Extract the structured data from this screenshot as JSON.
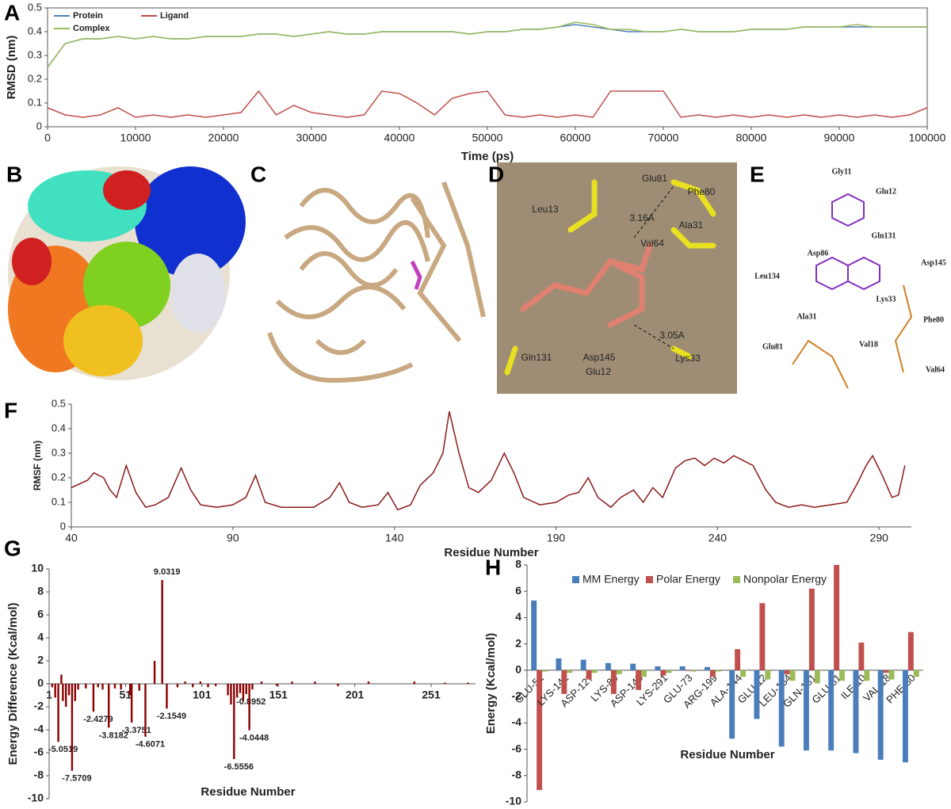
{
  "chart_data": [
    {
      "type": "line",
      "panel": "A",
      "x_label": "Time (ps)",
      "y_label": "RMSD (nm)",
      "x": [
        0,
        2000,
        4000,
        6000,
        8000,
        10000,
        12000,
        14000,
        16000,
        18000,
        20000,
        22000,
        24000,
        26000,
        28000,
        30000,
        32000,
        34000,
        36000,
        38000,
        40000,
        42000,
        44000,
        46000,
        48000,
        50000,
        52000,
        54000,
        56000,
        58000,
        60000,
        62000,
        64000,
        66000,
        68000,
        70000,
        72000,
        74000,
        76000,
        78000,
        80000,
        82000,
        84000,
        86000,
        88000,
        90000,
        92000,
        94000,
        96000,
        98000,
        100000
      ],
      "series": [
        {
          "name": "Protein",
          "color": "#4f81bd",
          "values": [
            0.25,
            0.35,
            0.37,
            0.37,
            0.38,
            0.37,
            0.38,
            0.37,
            0.37,
            0.38,
            0.38,
            0.38,
            0.39,
            0.39,
            0.38,
            0.39,
            0.4,
            0.39,
            0.39,
            0.4,
            0.4,
            0.4,
            0.4,
            0.4,
            0.39,
            0.4,
            0.4,
            0.41,
            0.41,
            0.42,
            0.43,
            0.42,
            0.41,
            0.4,
            0.4,
            0.4,
            0.41,
            0.4,
            0.4,
            0.4,
            0.41,
            0.41,
            0.41,
            0.42,
            0.42,
            0.42,
            0.42,
            0.42,
            0.42,
            0.42,
            0.42
          ]
        },
        {
          "name": "Ligand",
          "color": "#c0504d",
          "values": [
            0.08,
            0.05,
            0.04,
            0.05,
            0.08,
            0.04,
            0.05,
            0.04,
            0.05,
            0.04,
            0.05,
            0.06,
            0.15,
            0.05,
            0.09,
            0.06,
            0.05,
            0.04,
            0.05,
            0.15,
            0.14,
            0.1,
            0.05,
            0.12,
            0.14,
            0.15,
            0.05,
            0.04,
            0.05,
            0.04,
            0.05,
            0.04,
            0.15,
            0.15,
            0.15,
            0.15,
            0.04,
            0.05,
            0.04,
            0.05,
            0.04,
            0.05,
            0.04,
            0.05,
            0.04,
            0.05,
            0.04,
            0.05,
            0.04,
            0.05,
            0.08
          ]
        },
        {
          "name": "Complex",
          "color": "#9bbb59",
          "values": [
            0.25,
            0.35,
            0.37,
            0.37,
            0.38,
            0.37,
            0.38,
            0.37,
            0.37,
            0.38,
            0.38,
            0.38,
            0.39,
            0.39,
            0.38,
            0.39,
            0.4,
            0.39,
            0.39,
            0.4,
            0.4,
            0.4,
            0.4,
            0.4,
            0.39,
            0.4,
            0.4,
            0.41,
            0.41,
            0.42,
            0.44,
            0.43,
            0.41,
            0.41,
            0.4,
            0.4,
            0.41,
            0.4,
            0.4,
            0.4,
            0.41,
            0.41,
            0.41,
            0.42,
            0.42,
            0.42,
            0.43,
            0.42,
            0.42,
            0.42,
            0.42
          ]
        }
      ],
      "xlim": [
        0,
        100000
      ],
      "xticks": [
        0,
        10000,
        20000,
        30000,
        40000,
        50000,
        60000,
        70000,
        80000,
        90000,
        100000
      ],
      "ylim": [
        0,
        0.5
      ],
      "yticks": [
        0,
        0.1,
        0.2,
        0.3,
        0.4,
        0.5
      ],
      "legend": "upper left"
    },
    {
      "type": "line",
      "panel": "F",
      "x_label": "Residue Number",
      "y_label": "RMSF (nm)",
      "x": [
        40,
        45,
        47,
        50,
        52,
        54,
        57,
        60,
        63,
        66,
        70,
        74,
        77,
        80,
        85,
        90,
        94,
        97,
        100,
        105,
        110,
        115,
        120,
        123,
        126,
        130,
        135,
        138,
        141,
        145,
        148,
        152,
        155,
        157,
        160,
        163,
        166,
        170,
        174,
        177,
        180,
        185,
        190,
        194,
        197,
        200,
        203,
        207,
        210,
        214,
        217,
        220,
        223,
        227,
        230,
        233,
        236,
        239,
        242,
        245,
        248,
        251,
        255,
        258,
        262,
        266,
        270,
        275,
        280,
        283,
        286,
        288,
        291,
        294,
        296,
        298
      ],
      "series": [
        {
          "color": "#8b1a1a",
          "values": [
            0.16,
            0.19,
            0.22,
            0.2,
            0.15,
            0.12,
            0.25,
            0.14,
            0.08,
            0.09,
            0.12,
            0.24,
            0.15,
            0.09,
            0.08,
            0.09,
            0.12,
            0.21,
            0.1,
            0.08,
            0.08,
            0.08,
            0.12,
            0.18,
            0.1,
            0.08,
            0.09,
            0.14,
            0.07,
            0.09,
            0.17,
            0.22,
            0.3,
            0.47,
            0.3,
            0.16,
            0.14,
            0.19,
            0.3,
            0.22,
            0.12,
            0.09,
            0.1,
            0.13,
            0.14,
            0.2,
            0.12,
            0.08,
            0.12,
            0.15,
            0.1,
            0.16,
            0.12,
            0.24,
            0.27,
            0.28,
            0.25,
            0.28,
            0.26,
            0.29,
            0.27,
            0.25,
            0.15,
            0.1,
            0.08,
            0.09,
            0.08,
            0.09,
            0.1,
            0.17,
            0.25,
            0.29,
            0.21,
            0.12,
            0.13,
            0.25
          ]
        }
      ],
      "xlim": [
        40,
        300
      ],
      "xticks": [
        40,
        90,
        140,
        190,
        240,
        290
      ],
      "ylim": [
        0,
        0.5
      ],
      "yticks": [
        0,
        0.1,
        0.2,
        0.3,
        0.4,
        0.5
      ]
    },
    {
      "type": "bar",
      "panel": "G",
      "x_label": "Residue Number",
      "y_label": "Energy Difference (Kcal/mol)",
      "color": "#8b0000",
      "x": [
        3,
        5,
        7,
        9,
        10,
        12,
        14,
        16,
        18,
        20,
        25,
        30,
        33,
        36,
        40,
        44,
        48,
        54,
        55,
        60,
        64,
        70,
        75,
        78,
        85,
        90,
        95,
        100,
        105,
        110,
        118,
        120,
        122,
        124,
        126,
        128,
        130,
        132,
        134,
        140,
        150,
        160,
        175,
        190,
        210,
        240,
        260,
        275
      ],
      "values": [
        -0.3,
        -1.2,
        -5.0519,
        0.8,
        -1.5,
        -2.0,
        -1.0,
        -7.5709,
        -1.5,
        -0.5,
        -0.4,
        -2.4279,
        -0.3,
        -0.5,
        -3.8182,
        -0.4,
        -0.5,
        -1.0,
        -3.3751,
        -0.6,
        -4.6071,
        2.0,
        9.0319,
        -2.1549,
        -0.3,
        0.2,
        -0.3,
        0.2,
        -0.3,
        -0.2,
        -1.0,
        -1.8,
        -6.5556,
        -1.2,
        -0.8,
        -1.5,
        -0.8952,
        -4.0448,
        -0.5,
        0.2,
        -0.2,
        0.2,
        0.2,
        -0.2,
        0.2,
        0.2,
        0.1,
        0.1
      ],
      "value_labels": [
        null,
        null,
        "-5.0519",
        null,
        null,
        null,
        null,
        "-7.5709",
        null,
        null,
        null,
        "-2.4279",
        null,
        null,
        "-3.8182",
        null,
        null,
        null,
        "-3.3751",
        null,
        "-4.6071",
        null,
        "9.0319",
        "-2.1549",
        null,
        null,
        null,
        null,
        null,
        null,
        null,
        null,
        "-6.5556",
        null,
        null,
        null,
        "-0.8952",
        "-4.0448",
        null,
        null,
        null,
        null,
        null,
        null,
        null,
        null,
        null,
        null
      ],
      "xlim": [
        1,
        280
      ],
      "xticks": [
        1,
        51,
        101,
        151,
        201,
        251
      ],
      "ylim": [
        -10,
        10
      ],
      "yticks": [
        -10,
        -8,
        -6,
        -4,
        -2,
        0,
        2,
        4,
        6,
        8,
        10
      ]
    },
    {
      "type": "grouped_bar",
      "panel": "H",
      "x_label": "Residue Number",
      "y_label": "Energy (Kcal/mol)",
      "categories": [
        "GLU-51",
        "LYS-142",
        "ASP-127",
        "LYS-89",
        "ASP-145",
        "LYS-291",
        "GLU-73",
        "ARG-199",
        "ALA-144",
        "GLU-12",
        "LEU-134",
        "GLN-131",
        "GLU-81",
        "ILE-10",
        "VAL-18",
        "PHE-80"
      ],
      "series": [
        {
          "name": "MM Energy",
          "color": "#4a7ebb",
          "values": [
            5.3,
            0.9,
            0.8,
            0.55,
            0.5,
            0.3,
            0.3,
            0.25,
            -5.2,
            -3.7,
            -5.8,
            -6.1,
            -6.1,
            -6.3,
            -6.8,
            -7.0
          ]
        },
        {
          "name": "Polar Energy",
          "color": "#c0504d",
          "values": [
            -9.1,
            -1.8,
            -0.7,
            -1.8,
            -1.5,
            -0.4,
            -0.05,
            -0.5,
            1.6,
            5.1,
            -0.3,
            6.2,
            8.0,
            2.1,
            -0.2,
            2.9
          ]
        },
        {
          "name": "Nonpolar Energy",
          "color": "#9bbb59",
          "values": [
            -0.1,
            -0.2,
            -0.2,
            -0.3,
            -0.5,
            -0.2,
            -0.1,
            -0.1,
            -0.5,
            -0.7,
            -0.8,
            -1.0,
            -0.8,
            -0.8,
            -0.7,
            -0.5
          ]
        }
      ],
      "ylim": [
        -10,
        8
      ],
      "yticks": [
        -10,
        -8,
        -6,
        -4,
        -2,
        0,
        2,
        4,
        6,
        8
      ],
      "legend": "upper center"
    }
  ],
  "images": [
    {
      "panel": "B"
    },
    {
      "panel": "C"
    },
    {
      "panel": "D",
      "labels": [
        "Glu81",
        "Phe80",
        "3.16A",
        "Leu13",
        "Val64",
        "Ala31",
        "3.05A",
        "Gln131",
        "Asp145",
        "Glu12",
        "Lys33"
      ]
    },
    {
      "panel": "E",
      "labels": [
        "Gly11",
        "Glu12",
        "Gln131",
        "Asp86",
        "Asp145",
        "Leu134",
        "Lys33",
        "Ala31",
        "Phe80",
        "Val18",
        "Glu81",
        "Val64"
      ]
    }
  ]
}
